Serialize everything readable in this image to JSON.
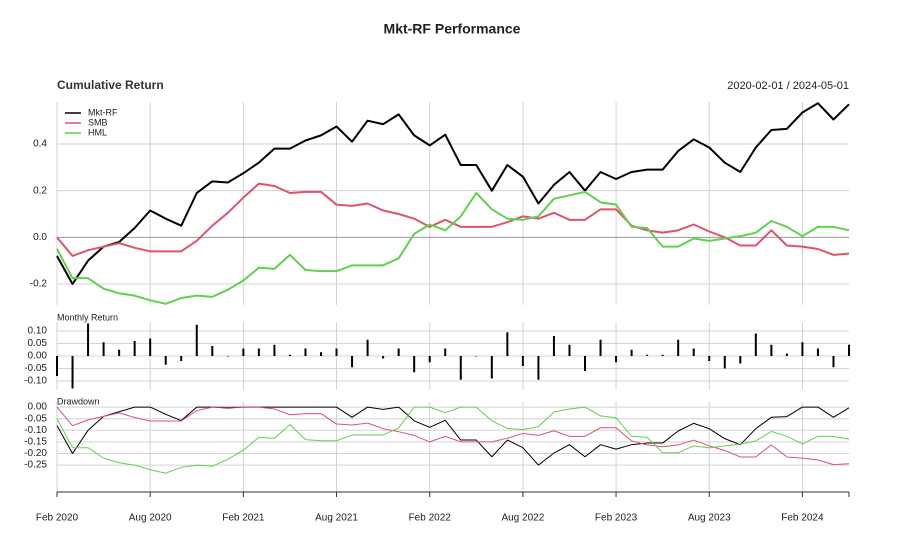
{
  "title": "Mkt-RF Performance",
  "chart_data": [
    {
      "type": "line",
      "title": "Cumulative Return",
      "subtitle": "2020-02-01 / 2024-05-01",
      "x": [
        "Feb 2020",
        "Mar 2020",
        "Apr 2020",
        "May 2020",
        "Jun 2020",
        "Jul 2020",
        "Aug 2020",
        "Sep 2020",
        "Oct 2020",
        "Nov 2020",
        "Dec 2020",
        "Jan 2021",
        "Feb 2021",
        "Mar 2021",
        "Apr 2021",
        "May 2021",
        "Jun 2021",
        "Jul 2021",
        "Aug 2021",
        "Sep 2021",
        "Oct 2021",
        "Nov 2021",
        "Dec 2021",
        "Jan 2022",
        "Feb 2022",
        "Mar 2022",
        "Apr 2022",
        "May 2022",
        "Jun 2022",
        "Jul 2022",
        "Aug 2022",
        "Sep 2022",
        "Oct 2022",
        "Nov 2022",
        "Dec 2022",
        "Jan 2023",
        "Feb 2023",
        "Mar 2023",
        "Apr 2023",
        "May 2023",
        "Jun 2023",
        "Jul 2023",
        "Aug 2023",
        "Sep 2023",
        "Oct 2023",
        "Nov 2023",
        "Dec 2023",
        "Jan 2024",
        "Feb 2024",
        "Mar 2024",
        "Apr 2024",
        "May 2024"
      ],
      "series": [
        {
          "name": "Mkt-RF",
          "color": "#000000",
          "values": [
            -0.08,
            -0.2,
            -0.1,
            -0.04,
            -0.02,
            0.04,
            0.115,
            0.08,
            0.05,
            0.19,
            0.24,
            0.235,
            0.275,
            0.32,
            0.38,
            0.38,
            0.415,
            0.437,
            0.475,
            0.41,
            0.5,
            0.485,
            0.527,
            0.437,
            0.394,
            0.44,
            0.31,
            0.31,
            0.2,
            0.31,
            0.26,
            0.145,
            0.225,
            0.28,
            0.2,
            0.28,
            0.25,
            0.28,
            0.29,
            0.29,
            0.37,
            0.42,
            0.385,
            0.32,
            0.28,
            0.385,
            0.46,
            0.465,
            0.535,
            0.575,
            0.505,
            0.57
          ]
        },
        {
          "name": "SMB",
          "color": "#df536b",
          "values": [
            0,
            -0.08,
            -0.055,
            -0.04,
            -0.025,
            -0.045,
            -0.06,
            -0.06,
            -0.06,
            -0.015,
            0.05,
            0.105,
            0.17,
            0.23,
            0.22,
            0.19,
            0.195,
            0.195,
            0.14,
            0.135,
            0.145,
            0.115,
            0.1,
            0.08,
            0.045,
            0.075,
            0.045,
            0.045,
            0.045,
            0.065,
            0.09,
            0.08,
            0.105,
            0.075,
            0.075,
            0.12,
            0.12,
            0.05,
            0.03,
            0.02,
            0.03,
            0.055,
            0.025,
            0,
            -0.035,
            -0.035,
            0.03,
            -0.035,
            -0.04,
            -0.05,
            -0.075,
            -0.07
          ]
        },
        {
          "name": "HML",
          "color": "#61d04f",
          "values": [
            -0.05,
            -0.175,
            -0.175,
            -0.22,
            -0.24,
            -0.25,
            -0.27,
            -0.285,
            -0.26,
            -0.25,
            -0.255,
            -0.225,
            -0.185,
            -0.13,
            -0.135,
            -0.075,
            -0.14,
            -0.145,
            -0.145,
            -0.12,
            -0.12,
            -0.12,
            -0.09,
            0.015,
            0.055,
            0.03,
            0.09,
            0.19,
            0.12,
            0.08,
            0.075,
            0.09,
            0.165,
            0.18,
            0.195,
            0.15,
            0.14,
            0.045,
            0.04,
            -0.04,
            -0.04,
            -0.005,
            -0.015,
            -0.005,
            0.005,
            0.02,
            0.07,
            0.045,
            0.005,
            0.045,
            0.045,
            0.03
          ]
        }
      ],
      "ylim": [
        -0.29,
        0.58
      ],
      "yticks": [
        -0.2,
        {
          "value": 0,
          "label": "0.0"
        },
        0.2,
        0.4
      ],
      "grid": true,
      "legend": "top-left"
    },
    {
      "type": "bar",
      "title": "Monthly Return",
      "color": "#000000",
      "values": [
        -0.08,
        -0.13,
        0.13,
        0.055,
        0.025,
        0.06,
        0.07,
        -0.035,
        -0.02,
        0.125,
        0.04,
        0,
        0.03,
        0.03,
        0.045,
        0.005,
        0.03,
        0.015,
        0.03,
        -0.045,
        0.065,
        -0.01,
        0.03,
        -0.065,
        -0.025,
        0.03,
        -0.095,
        0,
        -0.09,
        0.095,
        -0.04,
        -0.095,
        0.08,
        0.045,
        -0.06,
        0.065,
        -0.025,
        0.025,
        0.005,
        0.005,
        0.065,
        0.03,
        -0.02,
        -0.05,
        -0.03,
        0.09,
        0.045,
        0.01,
        0.055,
        0.03,
        -0.045,
        0.045
      ],
      "ylim": [
        -0.136,
        0.136
      ],
      "yticks": [
        {
          "value": -0.1,
          "label": "-0.10"
        },
        -0.05,
        {
          "value": 0,
          "label": "0.00"
        },
        0.05,
        {
          "value": 0.1,
          "label": "0.10"
        }
      ],
      "grid": true
    },
    {
      "type": "line",
      "title": "Drawdown",
      "series": [
        {
          "color": "#000000",
          "values": [
            -0.08,
            -0.2,
            -0.1,
            -0.04,
            -0.02,
            0,
            0,
            -0.031,
            -0.058,
            0,
            0,
            -0.004,
            0,
            0,
            0,
            0,
            0,
            0,
            0,
            -0.044,
            0,
            -0.01,
            0,
            -0.059,
            -0.087,
            -0.057,
            -0.142,
            -0.142,
            -0.214,
            -0.142,
            -0.175,
            -0.25,
            -0.198,
            -0.162,
            -0.214,
            -0.162,
            -0.181,
            -0.162,
            -0.155,
            -0.155,
            -0.103,
            -0.07,
            -0.093,
            -0.136,
            -0.162,
            -0.093,
            -0.044,
            -0.041,
            0,
            0,
            -0.044,
            -0.003
          ]
        },
        {
          "color": "#df536b",
          "values": [
            0,
            -0.08,
            -0.055,
            -0.04,
            -0.025,
            -0.045,
            -0.06,
            -0.06,
            -0.06,
            -0.015,
            0,
            0,
            0,
            0,
            -0.008,
            -0.033,
            -0.028,
            -0.028,
            -0.073,
            -0.077,
            -0.069,
            -0.093,
            -0.106,
            -0.122,
            -0.15,
            -0.126,
            -0.15,
            -0.15,
            -0.15,
            -0.134,
            -0.114,
            -0.122,
            -0.102,
            -0.126,
            -0.126,
            -0.089,
            -0.089,
            -0.146,
            -0.163,
            -0.171,
            -0.163,
            -0.142,
            -0.167,
            -0.187,
            -0.215,
            -0.215,
            -0.163,
            -0.215,
            -0.22,
            -0.228,
            -0.248,
            -0.244
          ]
        },
        {
          "color": "#61d04f",
          "values": [
            -0.05,
            -0.175,
            -0.175,
            -0.22,
            -0.24,
            -0.25,
            -0.27,
            -0.285,
            -0.26,
            -0.25,
            -0.255,
            -0.225,
            -0.185,
            -0.13,
            -0.135,
            -0.075,
            -0.14,
            -0.145,
            -0.145,
            -0.12,
            -0.12,
            -0.12,
            -0.09,
            0,
            0,
            -0.024,
            0,
            0,
            -0.059,
            -0.092,
            -0.097,
            -0.084,
            -0.021,
            -0.008,
            0,
            -0.038,
            -0.046,
            -0.126,
            -0.13,
            -0.197,
            -0.197,
            -0.167,
            -0.176,
            -0.167,
            -0.159,
            -0.146,
            -0.105,
            -0.126,
            -0.159,
            -0.126,
            -0.126,
            -0.138
          ]
        }
      ],
      "ylim": [
        -0.366,
        0.022
      ],
      "yticks": [
        {
          "value": -0.25,
          "label": "-0.25"
        },
        {
          "value": -0.2,
          "label": "-0.20"
        },
        {
          "value": -0.15,
          "label": "-0.15"
        },
        {
          "value": -0.1,
          "label": "-0.10"
        },
        -0.05,
        {
          "value": 0,
          "label": "0.00"
        }
      ],
      "xticks": [
        "Feb 2020",
        "Aug 2020",
        "Feb 2021",
        "Aug 2021",
        "Feb 2022",
        "Aug 2022",
        "Feb 2023",
        "Aug 2023",
        "Feb 2024"
      ],
      "grid": true
    }
  ]
}
